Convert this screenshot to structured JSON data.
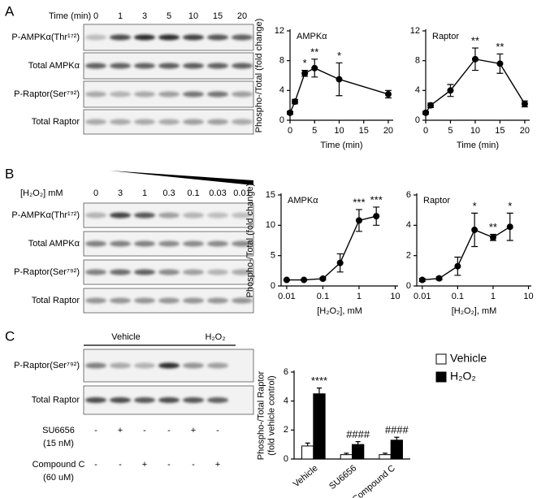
{
  "blots": [
    {
      "label": "A",
      "header": "Time (min)",
      "lanes": [
        "0",
        "1",
        "3",
        "5",
        "10",
        "15",
        "20"
      ],
      "rows": [
        "P-AMPKα(Thr¹⁷²)",
        "Total AMPKα",
        "P-Raptor(Ser⁷⁹²)",
        "Total Raptor"
      ]
    },
    {
      "label": "B",
      "header": "[H₂O₂] mM",
      "lanes": [
        "0",
        "3",
        "1",
        "0.3",
        "0.1",
        "0.03",
        "0.01"
      ],
      "rows": [
        "P-AMPKα(Thr¹⁷²)",
        "Total AMPKα",
        "P-Raptor(Ser⁷⁹²)",
        "Total Raptor"
      ]
    },
    {
      "label": "C",
      "groups": [
        "Vehicle",
        "H₂O₂"
      ],
      "rows": [
        "P-Raptor(Ser⁷⁹²)",
        "Total Raptor"
      ],
      "treatments": [
        {
          "name": [
            "SU6656",
            "(15 nM)"
          ],
          "marks": [
            "-",
            "+",
            "-",
            "-",
            "+",
            "-"
          ]
        },
        {
          "name": [
            "Compound C",
            "(60 uM)"
          ],
          "marks": [
            "-",
            "-",
            "+",
            "-",
            "-",
            "+"
          ]
        }
      ]
    }
  ],
  "chart_data": [
    {
      "type": "line",
      "title": "AMPKα",
      "ylabel": "Phospho-/Total (fold change)",
      "xlabel": "Time (min)",
      "x": [
        0,
        1,
        3,
        5,
        10,
        20
      ],
      "values": [
        1,
        2.5,
        6.3,
        7,
        5.5,
        3.5
      ],
      "errors": [
        0.2,
        0.3,
        0.4,
        1.2,
        2.2,
        0.5
      ],
      "significance": [
        null,
        null,
        "*",
        "**",
        "*",
        null
      ],
      "color": "#000000",
      "xlim": [
        0,
        21
      ],
      "xticks": [
        0,
        5,
        10,
        15,
        20
      ],
      "ylim": [
        0,
        12
      ],
      "yticks": [
        0,
        4,
        8,
        12
      ]
    },
    {
      "type": "line",
      "title": "Raptor",
      "xlabel": "Time (min)",
      "x": [
        0,
        1,
        5,
        10,
        15,
        20
      ],
      "values": [
        1,
        2,
        4,
        8.2,
        7.6,
        2.2
      ],
      "errors": [
        0.2,
        0.3,
        0.8,
        1.5,
        1.3,
        0.4
      ],
      "significance": [
        null,
        null,
        null,
        "**",
        "**",
        null
      ],
      "color": "#000000",
      "xlim": [
        0,
        21
      ],
      "xticks": [
        0,
        5,
        10,
        15,
        20
      ],
      "ylim": [
        0,
        12
      ],
      "yticks": [
        0,
        4,
        8,
        12
      ]
    },
    {
      "type": "line",
      "title": "AMPKα",
      "ylabel": "Phospho-/Total (fold change)",
      "xlabel": "[H₂O₂], mM",
      "xscale": "log",
      "x": [
        0.01,
        0.03,
        0.1,
        0.3,
        1,
        3
      ],
      "values": [
        1,
        1,
        1.2,
        3.8,
        10.8,
        11.5
      ],
      "errors": [
        0.1,
        0.1,
        0.2,
        1.5,
        1.8,
        1.5
      ],
      "significance": [
        null,
        null,
        null,
        null,
        "***",
        "***"
      ],
      "color": "#000000",
      "xlim": [
        0.007,
        12
      ],
      "xticks": [
        0.01,
        0.1,
        1,
        10
      ],
      "ylim": [
        0,
        15
      ],
      "yticks": [
        0,
        5,
        10,
        15
      ]
    },
    {
      "type": "line",
      "title": "Raptor",
      "xlabel": "[H₂O₂], mM",
      "xscale": "log",
      "x": [
        0.01,
        0.03,
        0.1,
        0.3,
        1,
        3
      ],
      "values": [
        0.4,
        0.5,
        1.3,
        3.7,
        3.2,
        3.9
      ],
      "errors": [
        0.1,
        0.1,
        0.6,
        1.1,
        0.2,
        0.9
      ],
      "significance": [
        null,
        null,
        null,
        "*",
        "**",
        "*"
      ],
      "color": "#000000",
      "xlim": [
        0.007,
        12
      ],
      "xticks": [
        0.01,
        0.1,
        1,
        10
      ],
      "ylim": [
        0,
        6
      ],
      "yticks": [
        0,
        2,
        4,
        6
      ]
    },
    {
      "type": "bar",
      "ylabel": [
        "Phospho-/Total Raptor",
        "(fold vehicle control)"
      ],
      "categories": [
        "Vehicle",
        "SU6656",
        "Compound C"
      ],
      "series": [
        {
          "name": "Vehicle",
          "color": "#ffffff",
          "values": [
            0.9,
            0.3,
            0.3
          ],
          "errors": [
            0.2,
            0.1,
            0.1
          ],
          "significance": [
            null,
            null,
            null
          ]
        },
        {
          "name": "H₂O₂",
          "color": "#000000",
          "values": [
            4.5,
            1.0,
            1.3
          ],
          "errors": [
            0.4,
            0.2,
            0.2
          ],
          "significance": [
            "****",
            "####",
            "####"
          ]
        }
      ],
      "legend": "top-right",
      "ylim": [
        0,
        6
      ],
      "yticks": [
        0,
        2,
        4,
        6
      ]
    }
  ]
}
